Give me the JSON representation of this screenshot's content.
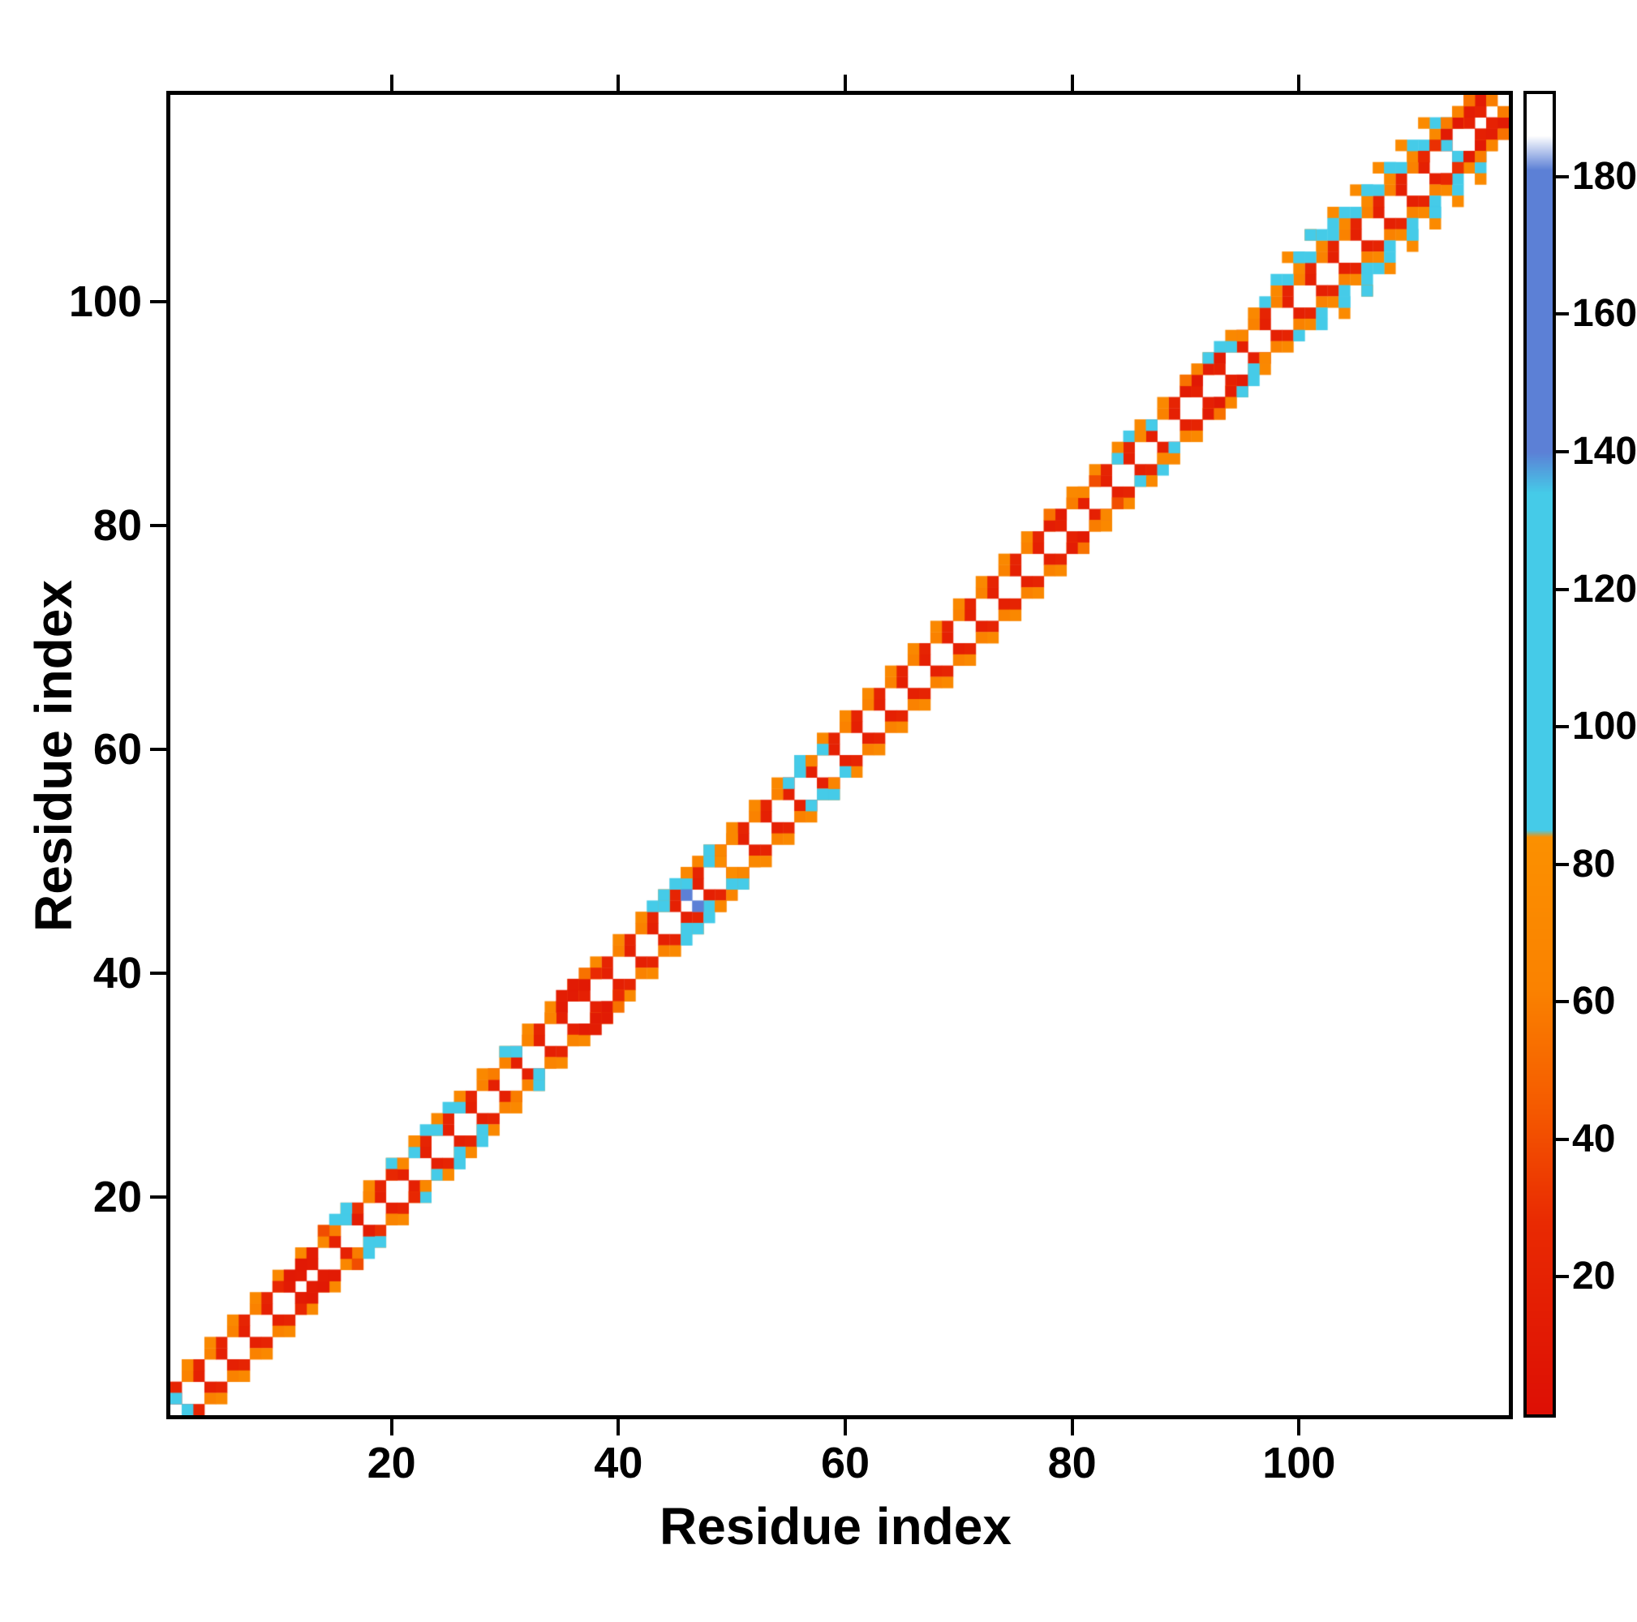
{
  "axes": {
    "x_label": "Residue index",
    "y_label": "Residue index",
    "x_ticks": [
      20,
      40,
      60,
      80,
      100
    ],
    "y_ticks": [
      20,
      40,
      60,
      80,
      100
    ]
  },
  "colorbar": {
    "ticks": [
      20,
      40,
      60,
      80,
      100,
      120,
      140,
      160,
      180
    ],
    "min": 0,
    "max": 192
  },
  "colors": {
    "red": "#dd0f05",
    "orange": "#fa8200",
    "cyan": "#45cbe8",
    "blue": "#5c80d6",
    "background": "#ffffff",
    "axis": "#000000"
  },
  "chart_data": {
    "type": "heatmap",
    "title": "",
    "xlabel": "Residue index",
    "ylabel": "Residue index",
    "n_residues": 118,
    "x_range": [
      1,
      118
    ],
    "y_range": [
      1,
      118
    ],
    "value_range": [
      0,
      192
    ],
    "symmetric": true,
    "grid": false,
    "colormap_stops": [
      [
        0,
        "#dd0f05"
      ],
      [
        28,
        "#e92a02"
      ],
      [
        45,
        "#f55b00"
      ],
      [
        62,
        "#fa8200"
      ],
      [
        84,
        "#fb9000"
      ],
      [
        85,
        "#45cbe8"
      ],
      [
        134,
        "#45cbe8"
      ],
      [
        140,
        "#5c80d6"
      ],
      [
        181,
        "#5c80d6"
      ],
      [
        186,
        "#ffffff"
      ],
      [
        192,
        "#ffffff"
      ]
    ],
    "runs": [
      [
        1,
        115,
        1,
        2,
        18
      ],
      [
        1,
        115,
        2,
        2,
        22
      ],
      [
        2,
        116,
        2,
        2,
        62
      ],
      [
        2,
        114,
        3,
        2,
        72
      ],
      [
        97,
        113,
        3,
        2,
        100
      ],
      [
        98,
        112,
        4,
        2,
        108
      ],
      [
        99,
        111,
        5,
        2,
        75
      ]
    ],
    "cells": [
      [
        1,
        2,
        100
      ],
      [
        10,
        12,
        25
      ],
      [
        11,
        12,
        12
      ],
      [
        12,
        13,
        12
      ],
      [
        13,
        14,
        12
      ],
      [
        11,
        13,
        10
      ],
      [
        12,
        14,
        10
      ],
      [
        13,
        15,
        12
      ],
      [
        14,
        16,
        70
      ],
      [
        15,
        17,
        60
      ],
      [
        14,
        17,
        40
      ],
      [
        15,
        18,
        100
      ],
      [
        16,
        18,
        105
      ],
      [
        17,
        19,
        30
      ],
      [
        16,
        19,
        100
      ],
      [
        18,
        20,
        65
      ],
      [
        15,
        16,
        20
      ],
      [
        17,
        18,
        15
      ],
      [
        20,
        23,
        105
      ],
      [
        22,
        24,
        100
      ],
      [
        23,
        26,
        105
      ],
      [
        24,
        26,
        100
      ],
      [
        25,
        28,
        110
      ],
      [
        26,
        28,
        100
      ],
      [
        21,
        23,
        70
      ],
      [
        22,
        25,
        75
      ],
      [
        20,
        22,
        25
      ],
      [
        29,
        31,
        60
      ],
      [
        30,
        33,
        105
      ],
      [
        31,
        33,
        100
      ],
      [
        32,
        34,
        65
      ],
      [
        34,
        36,
        65
      ],
      [
        35,
        37,
        12
      ],
      [
        36,
        38,
        12
      ],
      [
        37,
        39,
        10
      ],
      [
        35,
        38,
        15
      ],
      [
        36,
        39,
        12
      ],
      [
        38,
        40,
        28
      ],
      [
        37,
        40,
        55
      ],
      [
        43,
        46,
        100
      ],
      [
        44,
        46,
        105
      ],
      [
        44,
        47,
        110
      ],
      [
        45,
        48,
        100
      ],
      [
        46,
        48,
        115
      ],
      [
        46,
        47,
        150
      ],
      [
        46,
        49,
        70
      ],
      [
        47,
        50,
        65
      ],
      [
        48,
        50,
        100
      ],
      [
        48,
        51,
        105
      ],
      [
        49,
        50,
        78
      ],
      [
        49,
        51,
        70
      ],
      [
        50,
        52,
        72
      ],
      [
        55,
        57,
        100
      ],
      [
        56,
        58,
        105
      ],
      [
        56,
        59,
        100
      ],
      [
        58,
        60,
        110
      ],
      [
        57,
        59,
        65
      ],
      [
        78,
        80,
        14
      ],
      [
        79,
        81,
        12
      ],
      [
        78,
        81,
        55
      ],
      [
        80,
        82,
        60
      ],
      [
        81,
        83,
        70
      ],
      [
        82,
        84,
        40
      ],
      [
        84,
        86,
        100
      ],
      [
        85,
        88,
        105
      ],
      [
        86,
        88,
        72
      ],
      [
        87,
        89,
        100
      ],
      [
        90,
        92,
        12
      ],
      [
        91,
        93,
        10
      ],
      [
        92,
        94,
        14
      ],
      [
        90,
        93,
        55
      ],
      [
        91,
        94,
        65
      ],
      [
        92,
        95,
        100
      ],
      [
        93,
        95,
        12
      ],
      [
        93,
        96,
        105
      ],
      [
        94,
        96,
        100
      ],
      [
        95,
        97,
        70
      ],
      [
        100,
        104,
        110
      ],
      [
        103,
        107,
        112
      ],
      [
        106,
        110,
        108
      ],
      [
        108,
        112,
        115
      ],
      [
        101,
        106,
        95
      ],
      [
        113,
        114,
        100
      ],
      [
        111,
        113,
        25
      ],
      [
        112,
        114,
        30
      ],
      [
        113,
        115,
        12
      ],
      [
        114,
        116,
        10
      ],
      [
        115,
        117,
        14
      ],
      [
        116,
        118,
        12
      ],
      [
        113,
        116,
        60
      ],
      [
        114,
        117,
        65
      ],
      [
        115,
        118,
        55
      ],
      [
        116,
        117,
        20
      ],
      [
        117,
        118,
        60
      ]
    ]
  }
}
